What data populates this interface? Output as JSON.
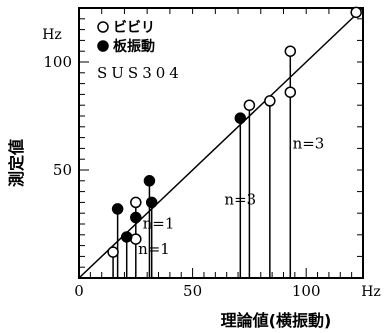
{
  "chart_data": {
    "type": "scatter",
    "title": "",
    "xlabel": "理論値(横振動)",
    "ylabel": "測定値",
    "x_unit": "Hz",
    "y_unit": "Hz",
    "xlim": [
      0,
      125
    ],
    "ylim": [
      0,
      125
    ],
    "x_ticks": [
      "0",
      "50",
      "100"
    ],
    "y_ticks": [
      "50",
      "100"
    ],
    "reference_line": "y = x",
    "legend": {
      "placement": "top-left",
      "items": [
        {
          "marker": "open-circle",
          "label": "ビビリ"
        },
        {
          "marker": "filled-circle",
          "label": "板振動"
        }
      ],
      "material": "SUS304"
    },
    "series": [
      {
        "name": "ビビリ",
        "marker": "open-circle",
        "points": [
          {
            "x": 15,
            "y": 12
          },
          {
            "x": 25,
            "y": 18
          },
          {
            "x": 25,
            "y": 35
          },
          {
            "x": 75,
            "y": 80
          },
          {
            "x": 84,
            "y": 82
          },
          {
            "x": 93,
            "y": 86
          },
          {
            "x": 93,
            "y": 105
          },
          {
            "x": 122,
            "y": 123
          }
        ]
      },
      {
        "name": "板振動",
        "marker": "filled-circle",
        "points": [
          {
            "x": 17,
            "y": 32
          },
          {
            "x": 21,
            "y": 19
          },
          {
            "x": 25,
            "y": 28
          },
          {
            "x": 31,
            "y": 45
          },
          {
            "x": 32,
            "y": 35
          },
          {
            "x": 71,
            "y": 74
          }
        ]
      }
    ],
    "drop_lines": [
      {
        "x": 15,
        "y": 12
      },
      {
        "x": 17,
        "y": 32
      },
      {
        "x": 21,
        "y": 19
      },
      {
        "x": 25,
        "y": 35
      },
      {
        "x": 31,
        "y": 45
      },
      {
        "x": 32,
        "y": 35
      },
      {
        "x": 71,
        "y": 74
      },
      {
        "x": 75,
        "y": 80
      },
      {
        "x": 84,
        "y": 82
      },
      {
        "x": 93,
        "y": 105
      }
    ],
    "annotations": [
      {
        "text": "n=1",
        "x": 28,
        "y": 23
      },
      {
        "text": "n=1",
        "x": 26,
        "y": 11
      },
      {
        "text": "n=3",
        "x": 64,
        "y": 34
      },
      {
        "text": "n=3",
        "x": 94,
        "y": 60
      }
    ]
  },
  "colors": {
    "ink": "#000000",
    "background": "#ffffff"
  }
}
